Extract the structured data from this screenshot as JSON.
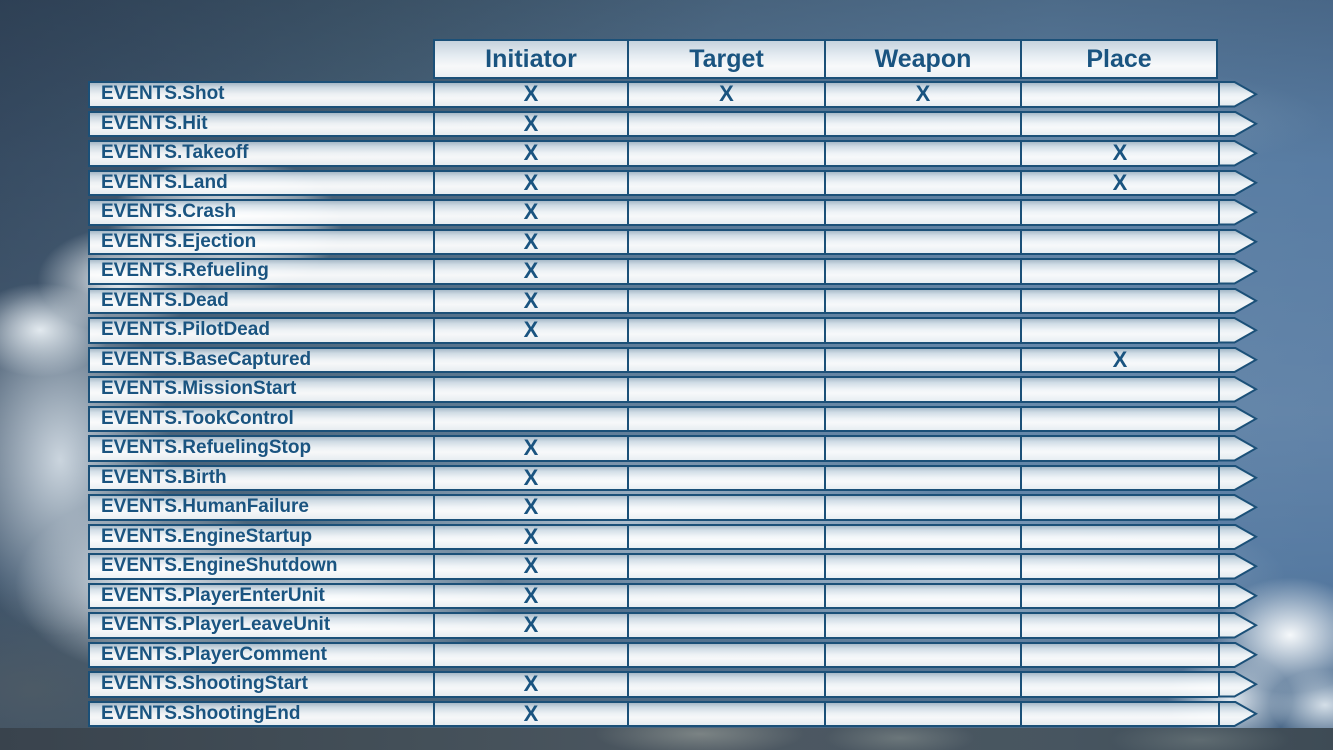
{
  "table": {
    "columns": [
      "Initiator",
      "Target",
      "Weapon",
      "Place"
    ],
    "rows": [
      {
        "label": "EVENTS.Shot",
        "marks": [
          "X",
          "X",
          "X",
          ""
        ]
      },
      {
        "label": "EVENTS.Hit",
        "marks": [
          "X",
          "",
          "",
          ""
        ]
      },
      {
        "label": "EVENTS.Takeoff",
        "marks": [
          "X",
          "",
          "",
          "X"
        ]
      },
      {
        "label": "EVENTS.Land",
        "marks": [
          "X",
          "",
          "",
          "X"
        ]
      },
      {
        "label": "EVENTS.Crash",
        "marks": [
          "X",
          "",
          "",
          ""
        ]
      },
      {
        "label": "EVENTS.Ejection",
        "marks": [
          "X",
          "",
          "",
          ""
        ]
      },
      {
        "label": "EVENTS.Refueling",
        "marks": [
          "X",
          "",
          "",
          ""
        ]
      },
      {
        "label": "EVENTS.Dead",
        "marks": [
          "X",
          "",
          "",
          ""
        ]
      },
      {
        "label": "EVENTS.PilotDead",
        "marks": [
          "X",
          "",
          "",
          ""
        ]
      },
      {
        "label": "EVENTS.BaseCaptured",
        "marks": [
          "",
          "",
          "",
          "X"
        ]
      },
      {
        "label": "EVENTS.MissionStart",
        "marks": [
          "",
          "",
          "",
          ""
        ]
      },
      {
        "label": "EVENTS.TookControl",
        "marks": [
          "",
          "",
          "",
          ""
        ]
      },
      {
        "label": "EVENTS.RefuelingStop",
        "marks": [
          "X",
          "",
          "",
          ""
        ]
      },
      {
        "label": "EVENTS.Birth",
        "marks": [
          "X",
          "",
          "",
          ""
        ]
      },
      {
        "label": "EVENTS.HumanFailure",
        "marks": [
          "X",
          "",
          "",
          ""
        ]
      },
      {
        "label": "EVENTS.EngineStartup",
        "marks": [
          "X",
          "",
          "",
          ""
        ]
      },
      {
        "label": "EVENTS.EngineShutdown",
        "marks": [
          "X",
          "",
          "",
          ""
        ]
      },
      {
        "label": "EVENTS.PlayerEnterUnit",
        "marks": [
          "X",
          "",
          "",
          ""
        ]
      },
      {
        "label": "EVENTS.PlayerLeaveUnit",
        "marks": [
          "X",
          "",
          "",
          ""
        ]
      },
      {
        "label": "EVENTS.PlayerComment",
        "marks": [
          "",
          "",
          "",
          ""
        ]
      },
      {
        "label": "EVENTS.ShootingStart",
        "marks": [
          "X",
          "",
          "",
          ""
        ]
      },
      {
        "label": "EVENTS.ShootingEnd",
        "marks": [
          "X",
          "",
          "",
          ""
        ]
      }
    ]
  },
  "colors": {
    "accent_blue": "#1b5078",
    "text_blue": "#1a5480",
    "row_fill_top": "#abbdcb",
    "row_fill_bottom": "#eef3f6",
    "sky_dark": "#415872",
    "sky_light": "#5e82a5",
    "bottom_band": "#434f58"
  }
}
